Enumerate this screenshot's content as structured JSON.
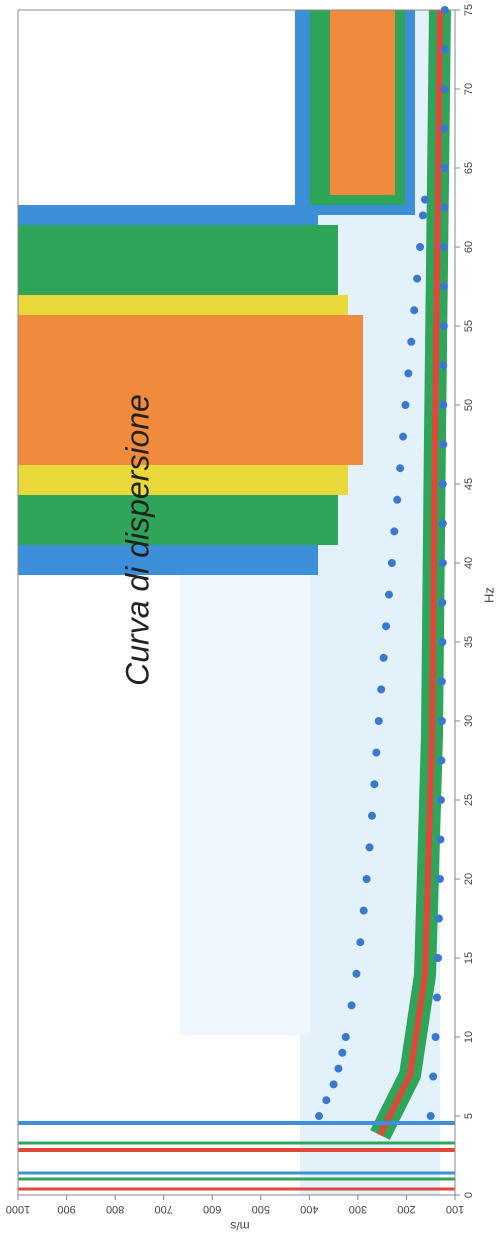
{
  "chart_data": {
    "type": "scatter",
    "title": "Curva di dispersione",
    "x_label": "Hz",
    "y_label": "m/s",
    "xlim": [
      0,
      75
    ],
    "xticks": [
      0,
      5,
      10,
      15,
      20,
      25,
      30,
      35,
      40,
      45,
      50,
      55,
      60,
      65,
      70,
      75
    ],
    "ylim": [
      100,
      1000
    ],
    "yticks": [
      100,
      200,
      300,
      400,
      500,
      600,
      700,
      800,
      900,
      1000
    ],
    "series": [
      {
        "color": "#3a78d0",
        "x": [
          5,
          6,
          7,
          8,
          9,
          10,
          12,
          14,
          16,
          18,
          20,
          22,
          24,
          26,
          28,
          30,
          32,
          34,
          36,
          38,
          40,
          42,
          44,
          46,
          48,
          50,
          52,
          54,
          56,
          58,
          60,
          62,
          63
        ],
        "values": [
          380,
          365,
          350,
          340,
          332,
          325,
          313,
          303,
          295,
          288,
          282,
          276,
          271,
          266,
          262,
          257,
          252,
          247,
          242,
          236,
          230,
          225,
          219,
          213,
          207,
          202,
          196,
          190,
          184,
          178,
          172,
          166,
          162
        ]
      },
      {
        "color": "#3a78d0",
        "x": [
          5,
          7.5,
          10,
          12.5,
          15,
          17.5,
          20,
          22.5,
          25,
          27.5,
          30,
          32.5,
          35,
          37.5,
          40,
          42.5,
          45,
          47.5,
          50,
          52.5,
          55,
          57.5,
          60,
          62.5,
          65,
          67.5,
          70,
          72.5,
          75
        ],
        "values": [
          150,
          145,
          140,
          137,
          135,
          133,
          131,
          130,
          129,
          128,
          127,
          127,
          126,
          126,
          125,
          125,
          125,
          124,
          124,
          124,
          123,
          123,
          123,
          122,
          122,
          122,
          121,
          121,
          121
        ]
      }
    ]
  }
}
